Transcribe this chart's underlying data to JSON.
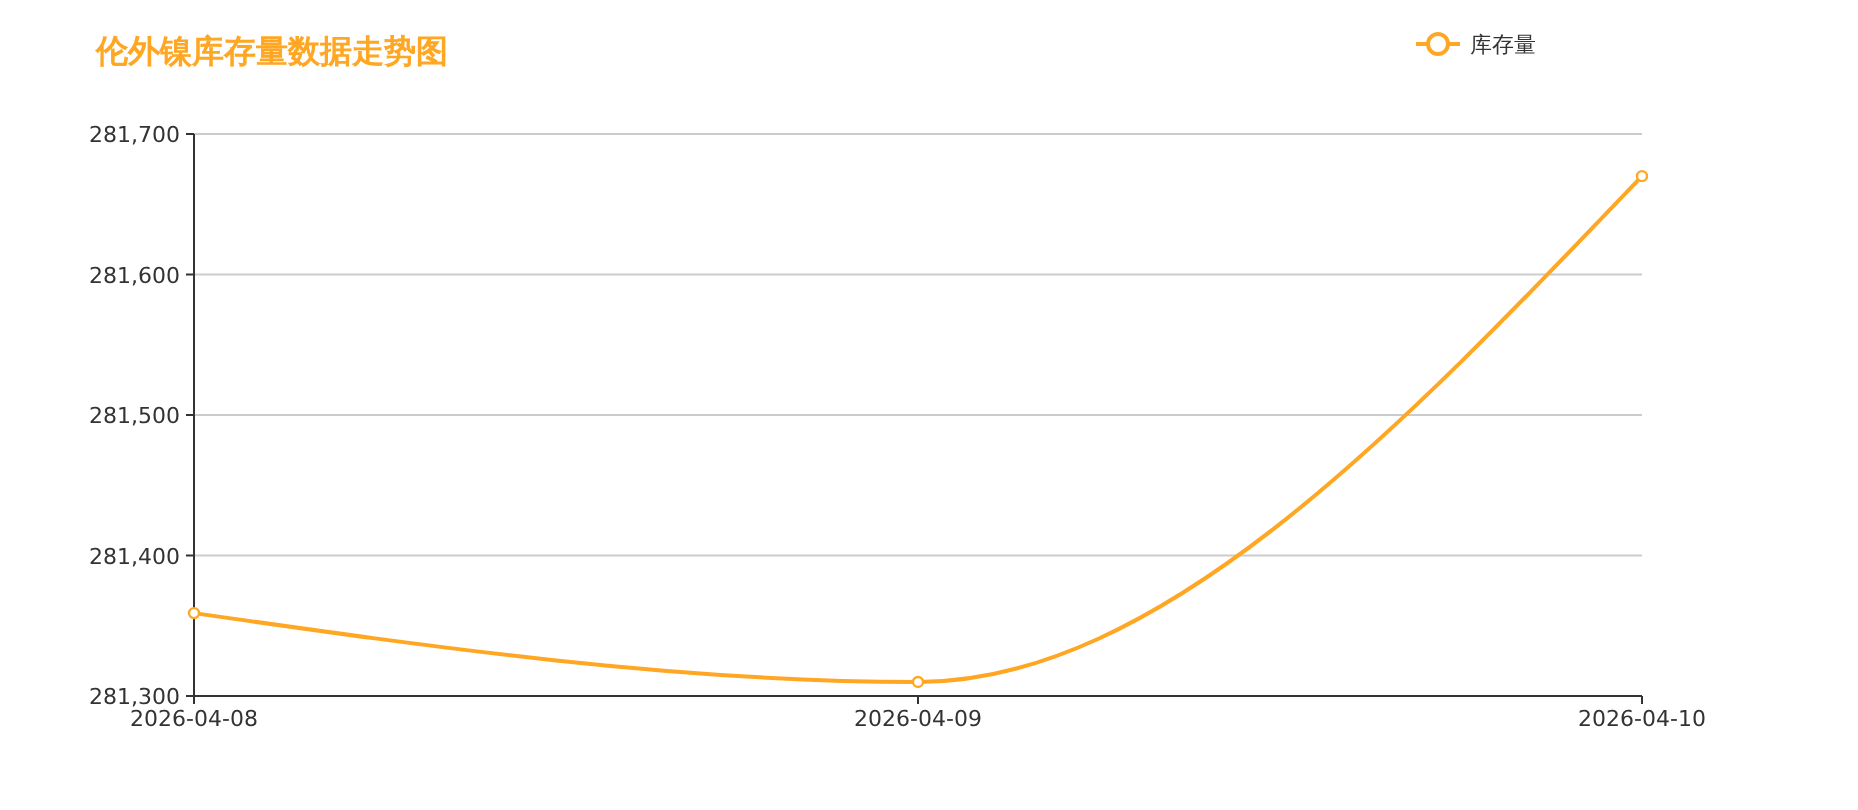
{
  "chart_data": {
    "type": "line",
    "title": "伦外镍库存量数据走势图",
    "categories": [
      "2026-04-08",
      "2026-04-09",
      "2026-04-10"
    ],
    "series": [
      {
        "name": "库存量",
        "color": "#ffa722",
        "values": [
          281359,
          281310,
          281670
        ]
      }
    ],
    "ylim": [
      281300,
      281700
    ],
    "yticks": [
      {
        "value": 281300,
        "label": "281,300"
      },
      {
        "value": 281400,
        "label": "281,400"
      },
      {
        "value": 281500,
        "label": "281,500"
      },
      {
        "value": 281600,
        "label": "281,600"
      },
      {
        "value": 281700,
        "label": "281,700"
      }
    ],
    "grid": "y",
    "legend": "top right",
    "marker": "circle"
  }
}
